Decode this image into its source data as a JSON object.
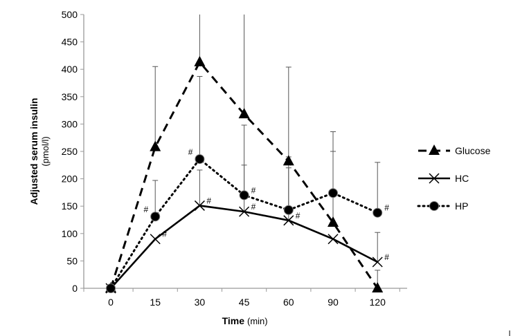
{
  "chart_data": {
    "type": "line",
    "title": "",
    "xlabel": "Time",
    "xlabel_unit": "(min)",
    "ylabel": "Adjusted serum insulin",
    "ylabel_unit": "(pmol/l)",
    "categories": [
      "0",
      "15",
      "30",
      "45",
      "60",
      "90",
      "120"
    ],
    "ylim": [
      0,
      500
    ],
    "yticks": [
      0,
      50,
      100,
      150,
      200,
      250,
      300,
      350,
      400,
      450,
      500
    ],
    "grid": false,
    "legend_position": "right",
    "series": [
      {
        "name": "Glucose",
        "style": "dashed",
        "marker": "triangle",
        "values": [
          0,
          258,
          413,
          318,
          232,
          120,
          0
        ],
        "error_upper": [
          null,
          405,
          500,
          500,
          404,
          250,
          33
        ]
      },
      {
        "name": "HC",
        "style": "solid",
        "marker": "x",
        "values": [
          0,
          90,
          151,
          140,
          124,
          90,
          48
        ],
        "error_upper": [
          null,
          null,
          216,
          225,
          220,
          null,
          102
        ]
      },
      {
        "name": "HP",
        "style": "dotted",
        "marker": "circle",
        "values": [
          0,
          131,
          236,
          170,
          143,
          174,
          138
        ],
        "error_upper": [
          null,
          197,
          387,
          298,
          240,
          286,
          230
        ]
      }
    ],
    "annotations": [
      {
        "series": "HP",
        "category": "15",
        "text": "#",
        "side": "left"
      },
      {
        "series": "HC",
        "category": "15",
        "text": "#",
        "side": "right"
      },
      {
        "series": "HP",
        "category": "30",
        "text": "#",
        "side": "left"
      },
      {
        "series": "HC",
        "category": "30",
        "text": "#",
        "side": "right"
      },
      {
        "series": "HP",
        "category": "45",
        "text": "#",
        "side": "right"
      },
      {
        "series": "HC",
        "category": "45",
        "text": "#",
        "side": "right"
      },
      {
        "series": "HC",
        "category": "60",
        "text": "#",
        "side": "right"
      },
      {
        "series": "HP",
        "category": "120",
        "text": "#",
        "side": "right"
      },
      {
        "series": "HC",
        "category": "120",
        "text": "#",
        "side": "right"
      }
    ]
  }
}
